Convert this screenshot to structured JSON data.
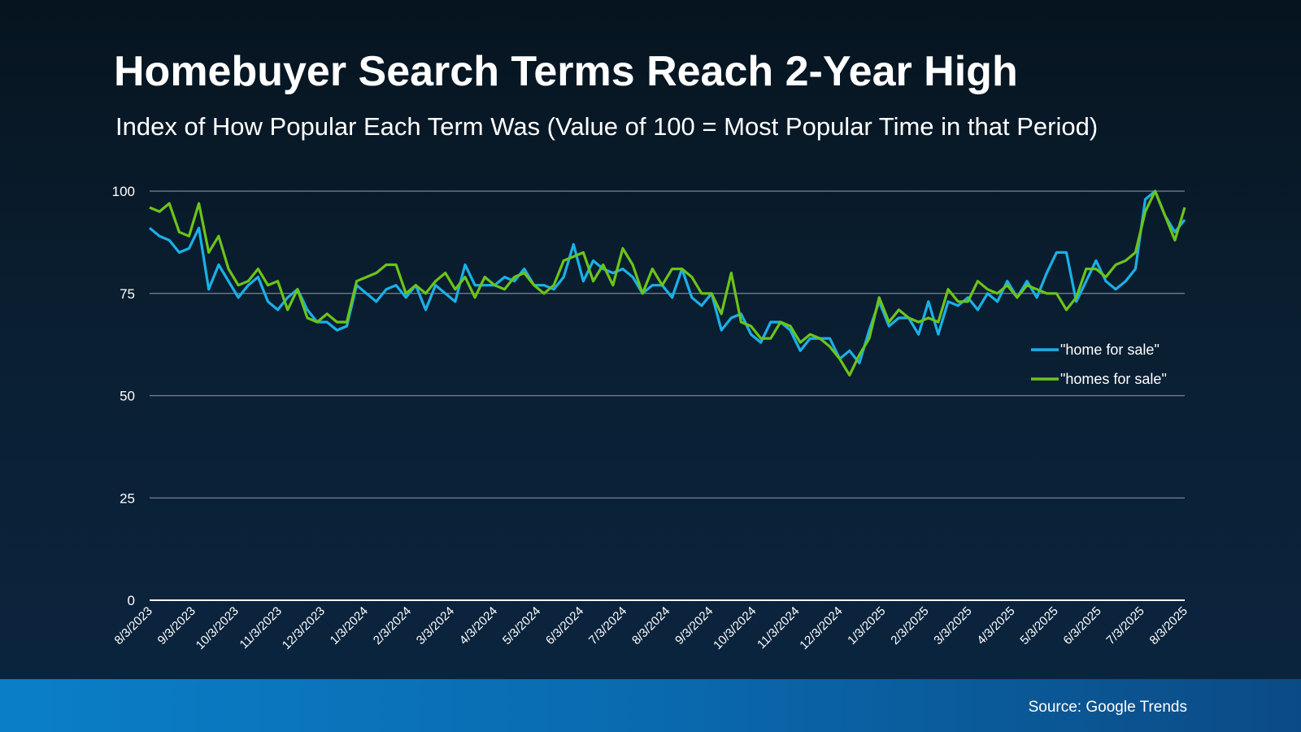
{
  "chart_data": {
    "type": "line",
    "title": "Homebuyer Search Terms Reach 2-Year High",
    "subtitle": "Index of How Popular Each Term Was (Value of 100 = Most Popular Time in that Period)",
    "ylim": [
      0,
      100
    ],
    "yticks": [
      "0",
      "25",
      "50",
      "75",
      "100"
    ],
    "grid": true,
    "legend_placement": "right",
    "x_tick_labels": [
      "8/3/2023",
      "9/3/2023",
      "10/3/2023",
      "11/3/2023",
      "12/3/2023",
      "1/3/2024",
      "2/3/2024",
      "3/3/2024",
      "4/3/2024",
      "5/3/2024",
      "6/3/2024",
      "7/3/2024",
      "8/3/2024",
      "9/3/2024",
      "10/3/2024",
      "11/3/2024",
      "12/3/2024",
      "1/3/2025",
      "2/3/2025",
      "3/3/2025",
      "4/3/2025",
      "5/3/2025",
      "6/3/2025",
      "7/3/2025",
      "8/3/2025"
    ],
    "series": [
      {
        "name": "\"home for sale\"",
        "color": "#1ab0e8",
        "values": [
          91,
          89,
          88,
          85,
          86,
          91,
          76,
          82,
          78,
          74,
          77,
          79,
          73,
          71,
          74,
          76,
          71,
          68,
          68,
          66,
          67,
          77,
          75,
          73,
          76,
          77,
          74,
          77,
          71,
          77,
          75,
          73,
          82,
          77,
          77,
          77,
          79,
          78,
          81,
          77,
          77,
          76,
          79,
          87,
          78,
          83,
          81,
          80,
          81,
          79,
          75,
          77,
          77,
          74,
          81,
          74,
          72,
          75,
          66,
          69,
          70,
          65,
          63,
          68,
          68,
          66,
          61,
          64,
          64,
          64,
          59,
          61,
          58,
          66,
          73,
          67,
          69,
          69,
          65,
          73,
          65,
          73,
          72,
          74,
          71,
          75,
          73,
          78,
          74,
          78,
          74,
          80,
          85,
          85,
          73,
          78,
          83,
          78,
          76,
          78,
          81,
          98,
          100,
          94,
          90,
          93
        ]
      },
      {
        "name": "\"homes for sale\"",
        "color": "#6cc417",
        "values": [
          96,
          95,
          97,
          90,
          89,
          97,
          85,
          89,
          81,
          77,
          78,
          81,
          77,
          78,
          71,
          76,
          69,
          68,
          70,
          68,
          68,
          78,
          79,
          80,
          82,
          82,
          75,
          77,
          75,
          78,
          80,
          76,
          79,
          74,
          79,
          77,
          76,
          79,
          80,
          77,
          75,
          77,
          83,
          84,
          85,
          78,
          82,
          77,
          86,
          82,
          75,
          81,
          77,
          81,
          81,
          79,
          75,
          75,
          70,
          80,
          68,
          67,
          64,
          64,
          68,
          67,
          63,
          65,
          64,
          62,
          59,
          55,
          60,
          64,
          74,
          68,
          71,
          69,
          68,
          69,
          68,
          76,
          73,
          73,
          78,
          76,
          75,
          77,
          74,
          77,
          76,
          75,
          75,
          71,
          74,
          81,
          81,
          79,
          82,
          83,
          85,
          95,
          100,
          94,
          88,
          96
        ]
      }
    ]
  },
  "footer": {
    "source": "Source: Google Trends"
  }
}
